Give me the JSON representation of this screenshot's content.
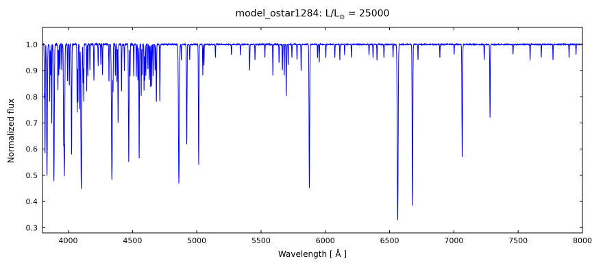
{
  "chart_data": {
    "type": "line",
    "title": "model_ostar1284: L/L⊙ = 25000",
    "title_parts": {
      "prefix": "model_ostar1284: L/L",
      "sub": "⊙",
      "suffix": " = 25000"
    },
    "xlabel": "Wavelength [ Å ]",
    "ylabel": "Normalized flux",
    "xlim": [
      3800,
      8000
    ],
    "ylim": [
      0.28,
      1.065
    ],
    "x_ticks": [
      4000,
      4500,
      5000,
      5500,
      6000,
      6500,
      7000,
      7500,
      8000
    ],
    "y_ticks": [
      0.3,
      0.4,
      0.5,
      0.6,
      0.7,
      0.8,
      0.9,
      1.0
    ],
    "grid": false,
    "legend": "none",
    "line_color": "#0000ff",
    "frame_color": "#000000",
    "continuum_level": 1.0,
    "absorption_lines_format": [
      "wavelength_A",
      "depth_below_continuum",
      "sigma_A"
    ],
    "absorption_lines": [
      [
        3815,
        0.2,
        1.5
      ],
      [
        3820,
        0.42,
        1.8
      ],
      [
        3835,
        0.5,
        3.0
      ],
      [
        3856,
        0.22,
        1.5
      ],
      [
        3863,
        0.12,
        1.5
      ],
      [
        3872,
        0.3,
        1.5
      ],
      [
        3889,
        0.52,
        3.0
      ],
      [
        3920,
        0.18,
        1.5
      ],
      [
        3927,
        0.12,
        1.5
      ],
      [
        3936,
        0.1,
        1.5
      ],
      [
        3950,
        0.1,
        1.5
      ],
      [
        3964,
        0.28,
        1.8
      ],
      [
        3970,
        0.5,
        3.2
      ],
      [
        3995,
        0.14,
        1.5
      ],
      [
        4009,
        0.16,
        1.5
      ],
      [
        4026,
        0.42,
        2.2
      ],
      [
        4070,
        0.26,
        1.8
      ],
      [
        4076,
        0.22,
        1.5
      ],
      [
        4089,
        0.25,
        1.5
      ],
      [
        4102,
        0.55,
        3.5
      ],
      [
        4116,
        0.15,
        1.5
      ],
      [
        4121,
        0.22,
        1.5
      ],
      [
        4144,
        0.18,
        1.5
      ],
      [
        4153,
        0.12,
        1.5
      ],
      [
        4169,
        0.1,
        1.5
      ],
      [
        4200,
        0.14,
        1.8
      ],
      [
        4233,
        0.08,
        1.5
      ],
      [
        4254,
        0.08,
        1.5
      ],
      [
        4267,
        0.12,
        1.5
      ],
      [
        4317,
        0.14,
        1.5
      ],
      [
        4340,
        0.52,
        3.5
      ],
      [
        4349,
        0.16,
        1.5
      ],
      [
        4367,
        0.12,
        1.5
      ],
      [
        4379,
        0.14,
        1.5
      ],
      [
        4388,
        0.3,
        2.0
      ],
      [
        4415,
        0.18,
        1.5
      ],
      [
        4437,
        0.1,
        1.5
      ],
      [
        4471,
        0.45,
        2.5
      ],
      [
        4481,
        0.12,
        1.5
      ],
      [
        4510,
        0.12,
        1.5
      ],
      [
        4530,
        0.12,
        1.5
      ],
      [
        4542,
        0.14,
        1.8
      ],
      [
        4552,
        0.44,
        2.0
      ],
      [
        4568,
        0.2,
        1.5
      ],
      [
        4575,
        0.12,
        1.5
      ],
      [
        4590,
        0.18,
        1.5
      ],
      [
        4596,
        0.14,
        1.5
      ],
      [
        4604,
        0.12,
        1.5
      ],
      [
        4620,
        0.1,
        1.5
      ],
      [
        4631,
        0.14,
        1.5
      ],
      [
        4640,
        0.16,
        1.5
      ],
      [
        4650,
        0.16,
        1.5
      ],
      [
        4661,
        0.12,
        1.5
      ],
      [
        4676,
        0.1,
        1.5
      ],
      [
        4686,
        0.22,
        1.8
      ],
      [
        4713,
        0.22,
        1.8
      ],
      [
        4861,
        0.53,
        3.5
      ],
      [
        4880,
        0.06,
        1.5
      ],
      [
        4922,
        0.38,
        2.2
      ],
      [
        4945,
        0.06,
        1.5
      ],
      [
        5015,
        0.46,
        2.2
      ],
      [
        5047,
        0.12,
        1.5
      ],
      [
        5056,
        0.08,
        1.5
      ],
      [
        5145,
        0.05,
        1.5
      ],
      [
        5270,
        0.04,
        1.5
      ],
      [
        5340,
        0.04,
        1.5
      ],
      [
        5411,
        0.1,
        1.8
      ],
      [
        5453,
        0.06,
        1.5
      ],
      [
        5530,
        0.05,
        1.5
      ],
      [
        5592,
        0.12,
        1.5
      ],
      [
        5640,
        0.07,
        1.5
      ],
      [
        5666,
        0.1,
        1.5
      ],
      [
        5680,
        0.12,
        1.5
      ],
      [
        5696,
        0.2,
        1.8
      ],
      [
        5711,
        0.08,
        1.5
      ],
      [
        5740,
        0.05,
        1.5
      ],
      [
        5780,
        0.06,
        1.5
      ],
      [
        5812,
        0.1,
        1.5
      ],
      [
        5876,
        0.55,
        2.5
      ],
      [
        5940,
        0.05,
        1.5
      ],
      [
        5953,
        0.07,
        1.5
      ],
      [
        6004,
        0.05,
        1.5
      ],
      [
        6074,
        0.05,
        1.5
      ],
      [
        6113,
        0.06,
        1.5
      ],
      [
        6150,
        0.04,
        1.5
      ],
      [
        6203,
        0.05,
        1.5
      ],
      [
        6340,
        0.04,
        1.5
      ],
      [
        6371,
        0.05,
        1.5
      ],
      [
        6402,
        0.06,
        1.5
      ],
      [
        6456,
        0.05,
        1.5
      ],
      [
        6527,
        0.05,
        1.5
      ],
      [
        6563,
        0.67,
        3.5
      ],
      [
        6678,
        0.62,
        2.5
      ],
      [
        6721,
        0.06,
        1.5
      ],
      [
        6891,
        0.05,
        1.5
      ],
      [
        7002,
        0.04,
        1.5
      ],
      [
        7065,
        0.43,
        2.5
      ],
      [
        7236,
        0.06,
        1.5
      ],
      [
        7281,
        0.28,
        2.0
      ],
      [
        7460,
        0.04,
        1.5
      ],
      [
        7593,
        0.06,
        1.5
      ],
      [
        7680,
        0.05,
        1.5
      ],
      [
        7771,
        0.06,
        1.5
      ],
      [
        7896,
        0.05,
        1.5
      ],
      [
        7950,
        0.04,
        1.5
      ]
    ]
  }
}
